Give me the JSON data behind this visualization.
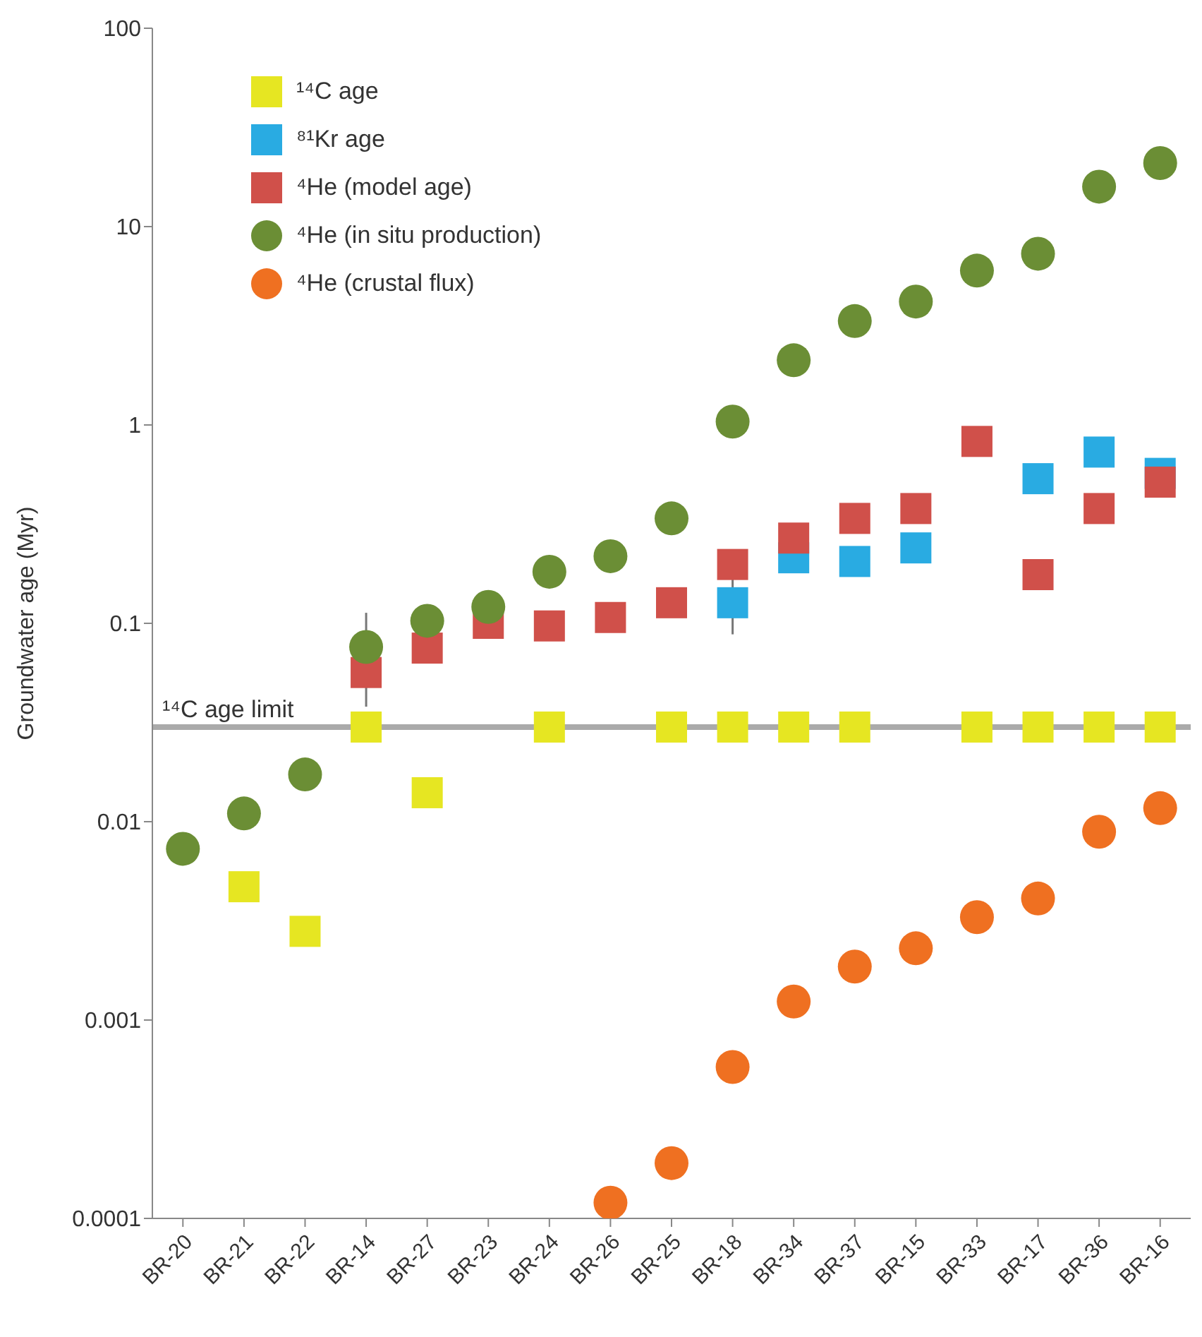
{
  "chart_data": {
    "type": "scatter",
    "ylabel": "Groundwater age (Myr)",
    "log": "y",
    "categories": [
      "BR-20",
      "BR-21",
      "BR-22",
      "BR-14",
      "BR-27",
      "BR-23",
      "BR-24",
      "BR-26",
      "BR-25",
      "BR-18",
      "BR-34",
      "BR-37",
      "BR-15",
      "BR-33",
      "BR-17",
      "BR-36",
      "BR-16"
    ],
    "ylim": [
      0.0001,
      100
    ],
    "yticks": [
      0.0001,
      0.001,
      0.01,
      0.1,
      1,
      10,
      100
    ],
    "legend": "top left",
    "grid": false,
    "ref_lines": [
      {
        "axis": "y",
        "value": 0.03,
        "label": "¹⁴C age limit",
        "color": "#aaaaaa"
      }
    ],
    "series": [
      {
        "name": "¹⁴C age",
        "color": "#e6e622",
        "marker": "square",
        "values": [
          null,
          0.0047,
          0.0028,
          0.03,
          0.014,
          null,
          0.03,
          null,
          0.03,
          0.03,
          0.03,
          0.03,
          null,
          0.03,
          0.03,
          0.03,
          0.03
        ]
      },
      {
        "name": "⁸¹Kr age",
        "color": "#29abe2",
        "marker": "square",
        "values": [
          null,
          null,
          null,
          null,
          null,
          null,
          null,
          null,
          null,
          0.127,
          0.214,
          0.205,
          0.24,
          null,
          0.536,
          0.73,
          0.57
        ],
        "errors": [
          null,
          null,
          null,
          null,
          null,
          null,
          null,
          null,
          null,
          [
            0.088,
            0.17
          ],
          null,
          null,
          null,
          null,
          null,
          null,
          null
        ]
      },
      {
        "name": "⁴He (model age)",
        "color": "#d0504a",
        "marker": "square",
        "values": [
          null,
          null,
          null,
          0.0565,
          0.075,
          0.1,
          0.097,
          0.107,
          0.127,
          0.198,
          0.269,
          0.338,
          0.379,
          0.826,
          0.176,
          0.379,
          0.515
        ],
        "errors": [
          null,
          null,
          null,
          [
            0.038,
            0.113
          ],
          null,
          null,
          null,
          null,
          null,
          null,
          null,
          null,
          null,
          null,
          null,
          null,
          null
        ]
      },
      {
        "name": "⁴He (in situ production)",
        "color": "#6b8e35",
        "marker": "circle",
        "values": [
          0.0073,
          0.011,
          0.0173,
          0.076,
          0.103,
          0.121,
          0.182,
          0.218,
          0.338,
          1.04,
          2.12,
          3.34,
          4.19,
          6.0,
          7.3,
          15.9,
          20.9
        ]
      },
      {
        "name": "⁴He (crustal flux)",
        "color": "#ef7021",
        "marker": "circle",
        "values": [
          null,
          null,
          null,
          null,
          null,
          null,
          null,
          0.00012,
          0.00019,
          0.00058,
          0.00124,
          0.00186,
          0.0023,
          0.0033,
          0.0041,
          0.0089,
          0.0117
        ]
      }
    ]
  }
}
